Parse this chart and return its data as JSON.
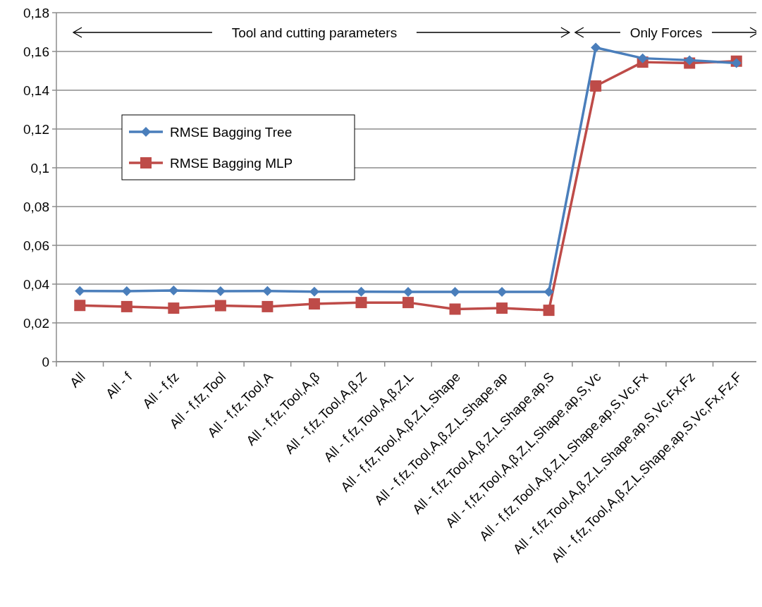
{
  "chart_data": {
    "type": "line",
    "categories": [
      "All",
      "All - f",
      "All - f,fz",
      "All - f,fz,Tool",
      "All - f,fz,Tool,A",
      "All - f,fz,Tool,A,β",
      "All - f,fz,Tool,A,β,Z",
      "All - f,fz,Tool,A,β,Z,L",
      "All - f,fz,Tool,A,β,Z,L,Shape",
      "All - f,fz,Tool,A,β,Z,L,Shape,ap",
      "All - f,fz,Tool,A,β,Z,L,Shape,ap,S",
      "All - f,fz,Tool,A,β,Z,L,Shape,ap,S,Vc",
      "All - f,fz,Tool,A,β,Z,L,Shape,ap,S,Vc,Fx",
      "All - f,fz,Tool,A,β,Z,L,Shape,ap,S,Vc,Fx,Fz",
      "All - f,fz,Tool,A,β,Z,L,Shape,ap,S,Vc,Fx,Fz,F"
    ],
    "series": [
      {
        "name": "RMSE Bagging Tree",
        "color": "#4a7ebb",
        "marker": "diamond",
        "values": [
          0.0365,
          0.0364,
          0.0367,
          0.0364,
          0.0365,
          0.0361,
          0.0361,
          0.036,
          0.036,
          0.036,
          0.036,
          0.162,
          0.1565,
          0.1555,
          0.154
        ]
      },
      {
        "name": "RMSE Bagging MLP",
        "color": "#be4b48",
        "marker": "square",
        "values": [
          0.029,
          0.0284,
          0.0276,
          0.0289,
          0.0284,
          0.0298,
          0.0305,
          0.0305,
          0.0271,
          0.0276,
          0.0265,
          0.1422,
          0.1545,
          0.154,
          0.155
        ]
      }
    ],
    "ylim": [
      0,
      0.18
    ],
    "yticks": [
      {
        "value": 0,
        "label": "0"
      },
      {
        "value": 0.02,
        "label": "0,02"
      },
      {
        "value": 0.04,
        "label": "0,04"
      },
      {
        "value": 0.06,
        "label": "0,06"
      },
      {
        "value": 0.08,
        "label": "0,08"
      },
      {
        "value": 0.1,
        "label": "0,1"
      },
      {
        "value": 0.12,
        "label": "0,12"
      },
      {
        "value": 0.14,
        "label": "0,14"
      },
      {
        "value": 0.16,
        "label": "0,16"
      },
      {
        "value": 0.18,
        "label": "0,18"
      }
    ],
    "grid": "y",
    "legend": "top left",
    "line_style": "solid",
    "annotations": [
      "Tool and cutting parameters",
      "Only Forces"
    ]
  }
}
